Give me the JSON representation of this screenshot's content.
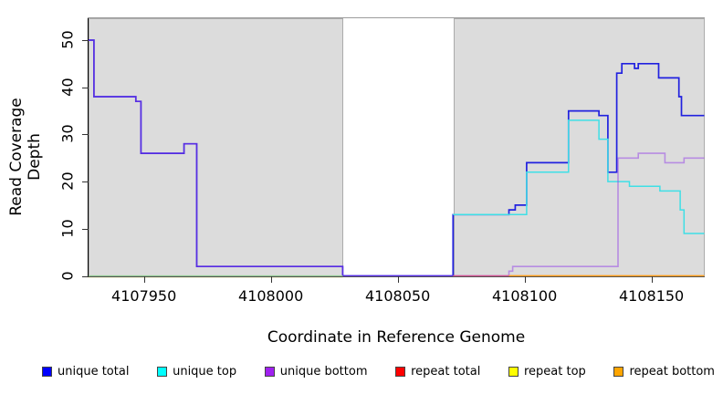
{
  "chart_data": {
    "type": "line",
    "style": "step-coverage-plot",
    "title": "",
    "xlabel": "Coordinate in Reference Genome",
    "ylabel": "Read Coverage Depth",
    "xlim": [
      4107928,
      4108171
    ],
    "ylim": [
      0,
      55
    ],
    "x_ticks": [
      4107950,
      4108000,
      4108050,
      4108100,
      4108150
    ],
    "y_ticks": [
      0,
      10,
      20,
      30,
      40,
      50
    ],
    "grid": false,
    "legend_position": "bottom",
    "background_color": "#ffffff",
    "shaded_region_color": "#dcdcdc",
    "shaded_regions": [
      {
        "x0": 4107928,
        "x1": 4108028.5
      },
      {
        "x0": 4108072,
        "x1": 4108171
      }
    ],
    "unshaded_gap": {
      "x0": 4108028.5,
      "x1": 4108072
    },
    "series": [
      {
        "name": "unique total",
        "legend_color": "#0000FF",
        "render_color": "#2121DF",
        "width": 1.7,
        "points": [
          [
            4107928,
            50
          ],
          [
            4107930.5,
            38
          ],
          [
            4107947,
            37
          ],
          [
            4107949,
            26
          ],
          [
            4107966,
            28
          ],
          [
            4107971,
            2
          ],
          [
            4108028.5,
            0
          ],
          [
            4108072,
            13
          ],
          [
            4108094,
            14
          ],
          [
            4108096.5,
            15
          ],
          [
            4108101,
            24
          ],
          [
            4108117.5,
            35
          ],
          [
            4108129.5,
            34
          ],
          [
            4108133,
            22
          ],
          [
            4108136.5,
            43
          ],
          [
            4108138.5,
            45
          ],
          [
            4108143.5,
            44
          ],
          [
            4108145,
            45
          ],
          [
            4108153,
            42
          ],
          [
            4108161,
            38
          ],
          [
            4108162,
            34
          ]
        ],
        "end": 4108171
      },
      {
        "name": "unique top",
        "legend_color": "#00FFFF",
        "render_color": "#3FDFE6",
        "width": 1.5,
        "points": [
          [
            4108072,
            13
          ],
          [
            4108101,
            22
          ],
          [
            4108117.5,
            33
          ],
          [
            4108129.5,
            29
          ],
          [
            4108133,
            20
          ],
          [
            4108141.5,
            19
          ],
          [
            4108153.5,
            18
          ],
          [
            4108161.5,
            14
          ],
          [
            4108163,
            9
          ]
        ],
        "end": 4108171
      },
      {
        "name": "unique bottom",
        "legend_color": "#A020F0",
        "render_color": "rgba(145,60,232,0.5)",
        "width": 1.6,
        "points": [
          [
            4107928,
            50
          ],
          [
            4107930.5,
            38
          ],
          [
            4107947,
            37
          ],
          [
            4107949,
            26
          ],
          [
            4107966,
            28
          ],
          [
            4107971,
            2
          ],
          [
            4108028.5,
            0
          ],
          [
            4108094,
            1
          ],
          [
            4108095.5,
            2
          ],
          [
            4108137,
            25
          ],
          [
            4108145,
            26
          ],
          [
            4108155.5,
            24
          ],
          [
            4108163,
            25
          ]
        ],
        "end": 4108171
      },
      {
        "name": "repeat total",
        "legend_color": "#FF0000",
        "render_color": "#D2518F",
        "width": 1.4,
        "points": [
          [
            4108072,
            0
          ]
        ],
        "end": 4108094
      },
      {
        "name": "repeat top",
        "legend_color": "#FFFF00",
        "render_color": "#8FC98F",
        "edge_color": "#EFEFAF",
        "width": 1.3,
        "points": [
          [
            4107928,
            0
          ]
        ],
        "end": 4108028.5
      },
      {
        "name": "repeat bottom",
        "legend_color": "#FFA500",
        "render_color": "#FF9E1A",
        "width": 1.7,
        "points": [
          [
            4108094,
            0
          ]
        ],
        "end": 4108171
      }
    ]
  },
  "axes": {
    "xlabel": "Coordinate in Reference Genome",
    "ylabel": "Read Coverage Depth"
  },
  "legend": {
    "items": [
      "unique total",
      "unique top",
      "unique bottom",
      "repeat total",
      "repeat top",
      "repeat bottom"
    ]
  }
}
